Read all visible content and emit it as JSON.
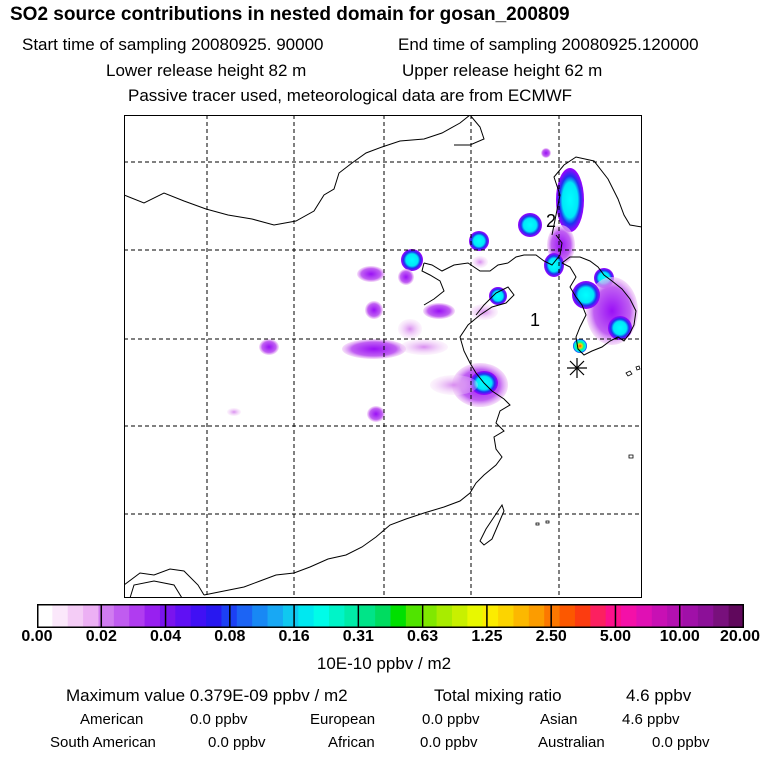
{
  "header": {
    "title": "SO2 source contributions in nested domain for gosan_200809",
    "start_time": "Start time of sampling 20080925. 90000",
    "end_time": "End time of sampling 20080925.120000",
    "lower_release": "Lower release height   82 m",
    "upper_release": "Upper release height   62 m",
    "note": "Passive tracer used, meteorological data are from ECMWF"
  },
  "map": {
    "labels": {
      "region_1": "1",
      "region_2": "2"
    },
    "receptor_marker": "asterisk",
    "colors": {
      "grid": "#000000",
      "coast": "#000000",
      "plume_cyan": "#00ffff",
      "plume_purple": "#a000ff"
    }
  },
  "colorbar": {
    "ticks": [
      "0.00",
      "0.02",
      "0.04",
      "0.08",
      "0.16",
      "0.31",
      "0.63",
      "1.25",
      "2.50",
      "5.00",
      "10.00",
      "20.00"
    ],
    "colors": [
      "#ffffff",
      "#fbe8fb",
      "#f4ccf6",
      "#ecb0f4",
      "#d07cf0",
      "#c05cf0",
      "#b03cf0",
      "#9820f0",
      "#7a14ee",
      "#6010f4",
      "#4010f4",
      "#2818f0",
      "#1c40f4",
      "#1c64f4",
      "#1888f4",
      "#18a8f4",
      "#10c8f0",
      "#00e8f0",
      "#00fce8",
      "#00f4c8",
      "#00eca8",
      "#00e488",
      "#00dc60",
      "#00e000",
      "#50e400",
      "#80e800",
      "#a8ec00",
      "#c8f000",
      "#e8f800",
      "#fcec00",
      "#fcd400",
      "#fcb800",
      "#fc9c00",
      "#fc7800",
      "#fc5800",
      "#fc3c10",
      "#fc2060",
      "#fc108c",
      "#f410a8",
      "#e010b4",
      "#c810b4",
      "#b410b0",
      "#a010a8",
      "#8c1098",
      "#78107c",
      "#60085c"
    ],
    "unit": "10E-10 ppbv / m2"
  },
  "summary": {
    "max_value": "Maximum value  0.379E-09 ppbv / m2",
    "total_mixing": "Total mixing ratio",
    "total_value": "4.6 ppbv",
    "regions": [
      {
        "name": "American",
        "value": "0.0 ppbv"
      },
      {
        "name": "European",
        "value": "0.0 ppbv"
      },
      {
        "name": "Asian",
        "value": "4.6 ppbv"
      },
      {
        "name": "South American",
        "value": "0.0 ppbv"
      },
      {
        "name": "African",
        "value": "0.0 ppbv"
      },
      {
        "name": "Australian",
        "value": "0.0 ppbv"
      }
    ]
  }
}
